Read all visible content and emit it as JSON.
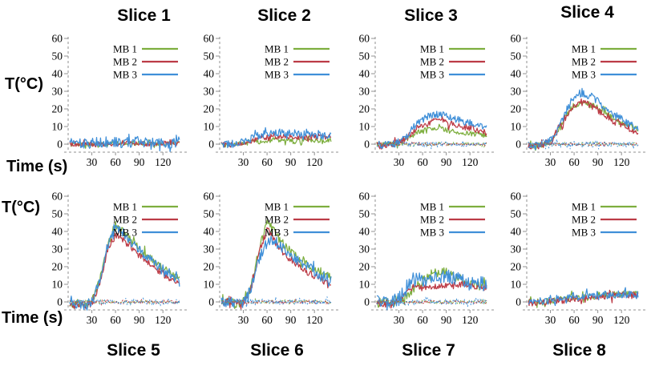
{
  "labels": {
    "y_axis": "T(°C)",
    "x_axis": "Time (s)"
  },
  "legend": {
    "entries": [
      "MB 1",
      "MB 2",
      "MB 3"
    ]
  },
  "colors": {
    "mb1": "#7DAE3E",
    "mb2": "#BC3B46",
    "mb3": "#3F8FD8",
    "axis_gray": "#909090",
    "text": "#000000",
    "background": "#FFFFFF"
  },
  "axes": {
    "y_ticks": [
      0,
      10,
      20,
      30,
      40,
      50,
      60
    ],
    "x_ticks": [
      30,
      60,
      90,
      120
    ],
    "ylim": [
      -5,
      62
    ],
    "xlim": [
      0,
      142
    ],
    "grid": false
  },
  "envelope_t": [
    0,
    10,
    20,
    30,
    40,
    50,
    60,
    70,
    80,
    90,
    100,
    110,
    120,
    130,
    140
  ],
  "chart_data": [
    {
      "type": "line",
      "title": "Slice 1",
      "baseline_traces": false,
      "series": [
        {
          "name": "MB 1",
          "color_key": "mb1",
          "values": [
            0,
            0,
            0,
            0,
            0,
            0,
            0.5,
            0.5,
            0.5,
            0.5,
            0.5,
            0.5,
            0.5,
            0.5,
            0.5
          ],
          "noise_amp": 1.3
        },
        {
          "name": "MB 2",
          "color_key": "mb2",
          "values": [
            0,
            0,
            0,
            0,
            0,
            0,
            0,
            0.5,
            0.5,
            0.5,
            0,
            0,
            0.5,
            0.5,
            0.5
          ],
          "noise_amp": 1.3
        },
        {
          "name": "MB 3",
          "color_key": "mb3",
          "values": [
            0,
            0.5,
            0.5,
            0.5,
            1,
            1,
            1,
            1,
            1,
            1.5,
            1,
            1,
            1,
            1,
            1.5
          ],
          "noise_amp": 3.0
        }
      ]
    },
    {
      "type": "line",
      "title": "Slice 2",
      "baseline_traces": false,
      "series": [
        {
          "name": "MB 1",
          "color_key": "mb1",
          "values": [
            0,
            0,
            0,
            0.5,
            1,
            1.5,
            2,
            2.5,
            2,
            2,
            2,
            2,
            2,
            2.5,
            2
          ],
          "noise_amp": 1.4
        },
        {
          "name": "MB 2",
          "color_key": "mb2",
          "values": [
            0,
            -0.5,
            0,
            1,
            2,
            3,
            4,
            4.5,
            4.5,
            4,
            4,
            4,
            4,
            4,
            4.5
          ],
          "noise_amp": 1.5
        },
        {
          "name": "MB 3",
          "color_key": "mb3",
          "values": [
            0,
            0,
            0.5,
            1.5,
            3,
            5,
            6.5,
            6.5,
            7,
            6.5,
            6,
            5.5,
            5.5,
            5,
            5.5
          ],
          "noise_amp": 2.2
        }
      ]
    },
    {
      "type": "line",
      "title": "Slice 3",
      "baseline_traces": true,
      "series": [
        {
          "name": "MB 1",
          "color_key": "mb1",
          "values": [
            0,
            -0.5,
            0,
            0.5,
            3,
            6,
            8,
            9,
            9,
            8,
            7,
            6.5,
            6,
            5.5,
            5
          ],
          "noise_amp": 1.5
        },
        {
          "name": "MB 2",
          "color_key": "mb2",
          "values": [
            -0.5,
            -1,
            0,
            1,
            4,
            8,
            11,
            12.5,
            13,
            12,
            11,
            10,
            9,
            8,
            6.5
          ],
          "noise_amp": 2.0
        },
        {
          "name": "MB 3",
          "color_key": "mb3",
          "values": [
            0,
            -0.5,
            0,
            1,
            5,
            10,
            14,
            16,
            17,
            16,
            14.5,
            13,
            12,
            11,
            9.5
          ],
          "noise_amp": 2.2
        }
      ]
    },
    {
      "type": "line",
      "title": "Slice 4",
      "baseline_traces": true,
      "series": [
        {
          "name": "MB 1",
          "color_key": "mb1",
          "values": [
            0,
            -1.5,
            0,
            1.5,
            8,
            17,
            22,
            23.5,
            22.5,
            20.5,
            18,
            15,
            12.5,
            10.5,
            8
          ],
          "noise_amp": 1.6
        },
        {
          "name": "MB 2",
          "color_key": "mb2",
          "values": [
            0,
            -1.5,
            0,
            1.5,
            8,
            16,
            22,
            24,
            22.5,
            19.5,
            16,
            13,
            11,
            9,
            7
          ],
          "noise_amp": 2.0
        },
        {
          "name": "MB 3",
          "color_key": "mb3",
          "values": [
            0,
            -1.5,
            0,
            2,
            9,
            19,
            27,
            29.5,
            27.5,
            24,
            20.5,
            17,
            14,
            11.5,
            8.5
          ],
          "noise_amp": 2.4
        }
      ]
    },
    {
      "type": "line",
      "title": "Slice 5",
      "baseline_traces": true,
      "series": [
        {
          "name": "MB 1",
          "color_key": "mb1",
          "values": [
            -1,
            -1,
            -2,
            0,
            12,
            33,
            44,
            40,
            34.5,
            30,
            26,
            22.5,
            19.5,
            16.5,
            12.5
          ],
          "noise_amp": 2.4
        },
        {
          "name": "MB 2",
          "color_key": "mb2",
          "values": [
            -2,
            -2,
            -3,
            -1,
            10,
            30,
            38,
            35.5,
            31,
            26.5,
            22.5,
            19,
            16,
            13,
            9.5
          ],
          "noise_amp": 2.0
        },
        {
          "name": "MB 3",
          "color_key": "mb3",
          "values": [
            -1,
            -1,
            -2,
            0,
            12,
            32,
            42.5,
            39,
            33.5,
            29,
            25,
            21.5,
            18.5,
            15.5,
            11.5
          ],
          "noise_amp": 2.6
        }
      ]
    },
    {
      "type": "line",
      "title": "Slice 6",
      "baseline_traces": true,
      "series": [
        {
          "name": "MB 1",
          "color_key": "mb1",
          "values": [
            0,
            0,
            -1,
            0,
            9,
            30,
            45,
            39.5,
            33,
            28.5,
            25,
            22,
            19,
            16.5,
            13.5
          ],
          "noise_amp": 2.5
        },
        {
          "name": "MB 2",
          "color_key": "mb2",
          "values": [
            0,
            0,
            -1,
            0,
            8,
            28,
            41.5,
            34,
            28,
            24,
            20.5,
            17.5,
            14.5,
            12,
            9
          ],
          "noise_amp": 2.0
        },
        {
          "name": "MB 3",
          "color_key": "mb3",
          "values": [
            0,
            0,
            -1,
            0,
            7,
            24,
            34,
            36,
            30.5,
            26.5,
            23,
            20,
            17.5,
            15,
            12.5
          ],
          "noise_amp": 3.2
        }
      ]
    },
    {
      "type": "line",
      "title": "Slice 7",
      "baseline_traces": true,
      "series": [
        {
          "name": "MB 1",
          "color_key": "mb1",
          "values": [
            0,
            -1,
            0,
            1,
            3,
            8,
            12,
            14.5,
            17,
            16.5,
            14.5,
            12,
            10.5,
            9.5,
            8.5
          ],
          "noise_amp": 2.8
        },
        {
          "name": "MB 2",
          "color_key": "mb2",
          "values": [
            0,
            -1.5,
            -1,
            1,
            6,
            9,
            8.5,
            8.5,
            9,
            9.5,
            9.5,
            10,
            9.5,
            8.5,
            8.5
          ],
          "noise_amp": 1.6
        },
        {
          "name": "MB 3",
          "color_key": "mb3",
          "values": [
            0,
            -1,
            0,
            2,
            10,
            13,
            11,
            13.5,
            15,
            14.5,
            13.5,
            12,
            10,
            10,
            10.5
          ],
          "noise_amp": 4.2
        }
      ]
    },
    {
      "type": "line",
      "title": "Slice 8",
      "baseline_traces": false,
      "series": [
        {
          "name": "MB 1",
          "color_key": "mb1",
          "values": [
            0,
            0,
            0,
            0.5,
            1,
            2,
            3,
            2.5,
            3,
            4,
            4,
            4.5,
            4.5,
            5,
            4.5
          ],
          "noise_amp": 2.0
        },
        {
          "name": "MB 2",
          "color_key": "mb2",
          "values": [
            0,
            -0.5,
            0,
            0.5,
            1,
            1,
            2,
            2,
            3,
            3,
            3.5,
            3,
            4,
            4,
            3.5
          ],
          "noise_amp": 2.0
        },
        {
          "name": "MB 3",
          "color_key": "mb3",
          "values": [
            0,
            0,
            0.5,
            1,
            2,
            2,
            3,
            3,
            3.5,
            4,
            4,
            4,
            4.5,
            4,
            4
          ],
          "noise_amp": 2.2
        }
      ]
    }
  ]
}
